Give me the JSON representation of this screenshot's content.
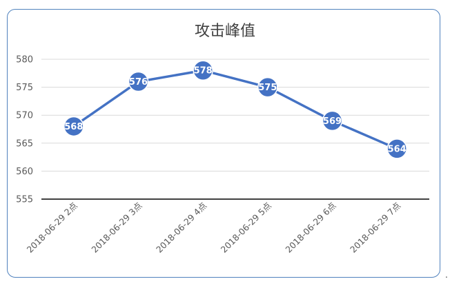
{
  "chart_data": {
    "type": "line",
    "title": "攻击峰值",
    "categories": [
      "2018-06-29 2点",
      "2018-06-29 3点",
      "2018-06-29 4点",
      "2018-06-29 5点",
      "2018-06-29 6点",
      "2018-06-29 7点"
    ],
    "series": [
      {
        "values": [
          568,
          576,
          578,
          575,
          569,
          564
        ]
      }
    ],
    "xlabel": "",
    "ylabel": "",
    "ylim": [
      555,
      580
    ],
    "yticks": [
      555,
      560,
      565,
      570,
      575,
      580
    ],
    "grid": true,
    "legend": "none",
    "colors": {
      "line": "#4472c4",
      "marker": "#4472c4",
      "marker_edge": "#ffffff",
      "grid": "#d9d9d9",
      "baseline": "#000000",
      "border": "#4f81bd"
    }
  },
  "trailing_mark": "."
}
